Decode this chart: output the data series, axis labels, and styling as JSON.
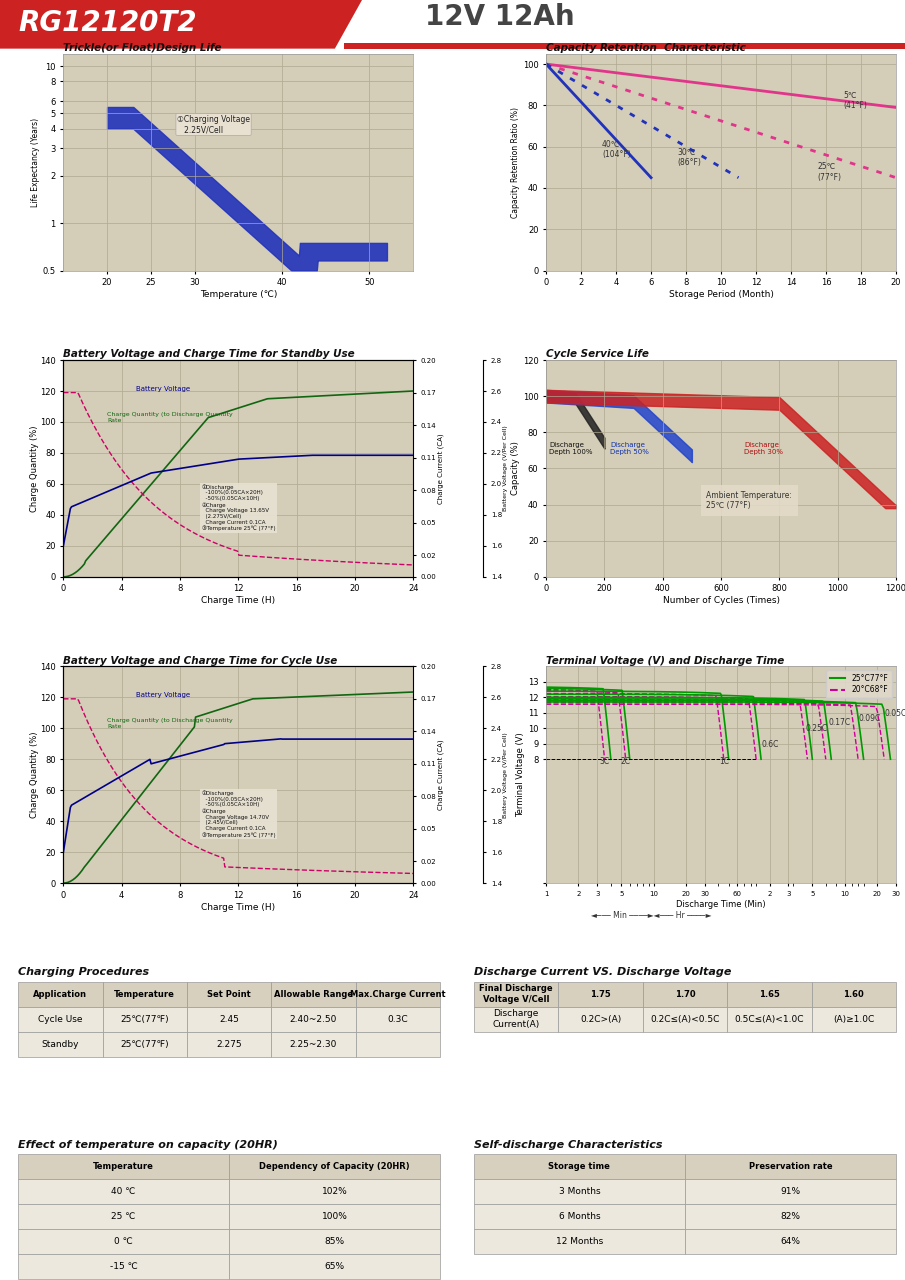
{
  "title_model": "RG12120T2",
  "title_spec": "12V 12Ah",
  "section1_title": "Trickle(or Float)Design Life",
  "section2_title": "Capacity Retention  Characteristic",
  "section3_title": "Battery Voltage and Charge Time for Standby Use",
  "section4_title": "Cycle Service Life",
  "section5_title": "Battery Voltage and Charge Time for Cycle Use",
  "section6_title": "Terminal Voltage (V) and Discharge Time",
  "section7_title": "Charging Procedures",
  "section8_title": "Discharge Current VS. Discharge Voltage",
  "section9_title": "Effect of temperature on capacity (20HR)",
  "section10_title": "Self-discharge Characteristics",
  "plot_bg": "#d4cdb8",
  "grid_color": "#b0a890",
  "header_red": "#cc2222"
}
